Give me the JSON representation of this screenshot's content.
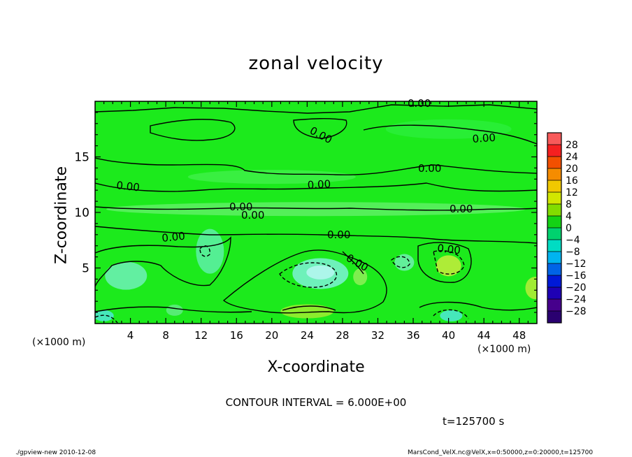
{
  "title": "zonal velocity",
  "footer": {
    "left": "./gpview-new   2010-12-08",
    "right": "MarsCond_VelX.nc@VelX,x=0:50000,z=0:20000,t=125700"
  },
  "contour_note": "CONTOUR INTERVAL = 6.000E+00",
  "time_label": "t=125700  s",
  "colors": {
    "background_field": "#1cea1c",
    "contour_line": "#000000"
  },
  "chart_data": {
    "type": "heatmap",
    "title": "zonal velocity",
    "xlabel": "X-coordinate",
    "ylabel": "Z-coordinate",
    "x_unit_left": "(×1000 m)",
    "x_unit_right": "(×1000 m)",
    "xlim": [
      0,
      50
    ],
    "ylim": [
      0,
      20
    ],
    "x_ticks": [
      4,
      8,
      12,
      16,
      20,
      24,
      28,
      32,
      36,
      40,
      44,
      48
    ],
    "y_ticks": [
      5,
      10,
      15
    ],
    "contour_interval": 6.0,
    "contour_labels": [
      "0.00",
      "0.00",
      "0.00",
      "0.00",
      "0.00",
      "0.00",
      "0.00",
      "0.00",
      "0.00",
      "0.00",
      "0.00",
      "0.00",
      "0.00"
    ],
    "colorbar": {
      "levels": [
        "28",
        "24",
        "20",
        "16",
        "12",
        "8",
        "4",
        "0",
        "−4",
        "−8",
        "−12",
        "−16",
        "−20",
        "−24",
        "−28"
      ],
      "colors": [
        "#f85a5a",
        "#f52020",
        "#f25000",
        "#f58c00",
        "#f0c800",
        "#d2e600",
        "#82dc00",
        "#14d214",
        "#00d26e",
        "#00dcc3",
        "#00b4f0",
        "#0064e6",
        "#0019d7",
        "#1e00b4",
        "#46008c"
      ]
    }
  }
}
